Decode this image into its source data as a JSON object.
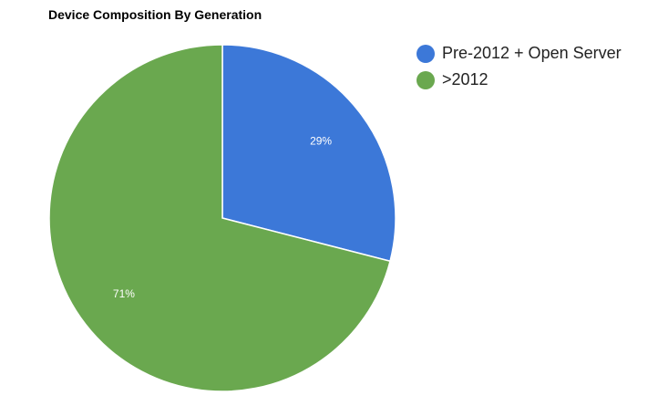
{
  "chart_data": {
    "type": "pie",
    "title": "Device Composition By Generation",
    "slices": [
      {
        "label": "Pre-2012 + Open Server",
        "value": 29,
        "display": "29%",
        "color": "#3c78d8"
      },
      {
        "label": ">2012",
        "value": 71,
        "display": "71%",
        "color": "#6aa84f"
      }
    ],
    "legend_position": "right"
  }
}
